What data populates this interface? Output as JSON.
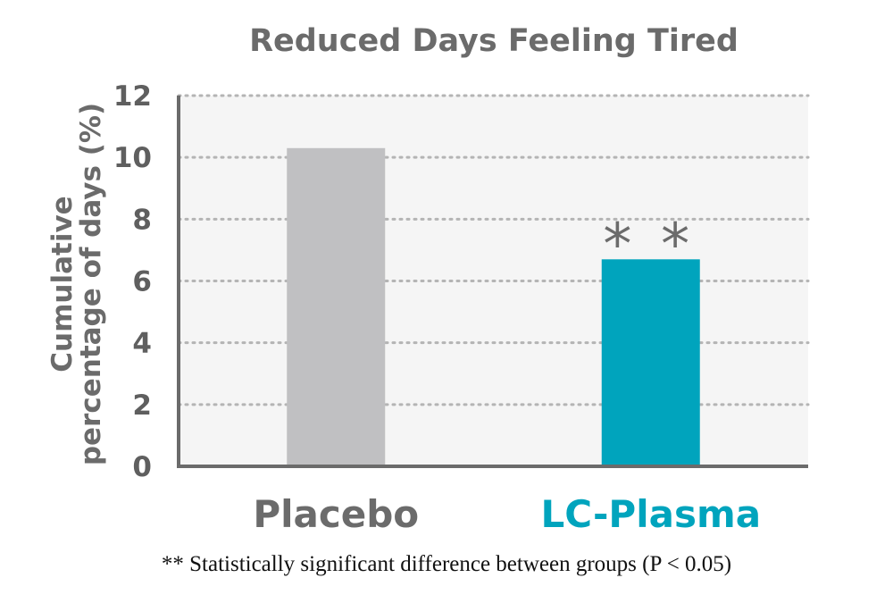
{
  "chart_data": {
    "type": "bar",
    "title": "Reduced Days Feeling Tired",
    "ylabel_lines": [
      "Cumulative",
      "percentage of days (%)"
    ],
    "xlabel": "",
    "categories": [
      "Placebo",
      "LC-Plasma"
    ],
    "values": [
      10.3,
      6.7
    ],
    "bar_colors": [
      "#c0c0c2",
      "#00a4bd"
    ],
    "label_colors": [
      "#6b6b6b",
      "#00a4bd"
    ],
    "annotations": [
      "",
      "**"
    ],
    "ylim": [
      0,
      12
    ],
    "yticks": [
      0,
      2,
      4,
      6,
      8,
      10,
      12
    ],
    "grid": true,
    "plot_bg": "#f5f5f5"
  },
  "footnote": "** Statistically significant difference between groups (P < 0.05)"
}
